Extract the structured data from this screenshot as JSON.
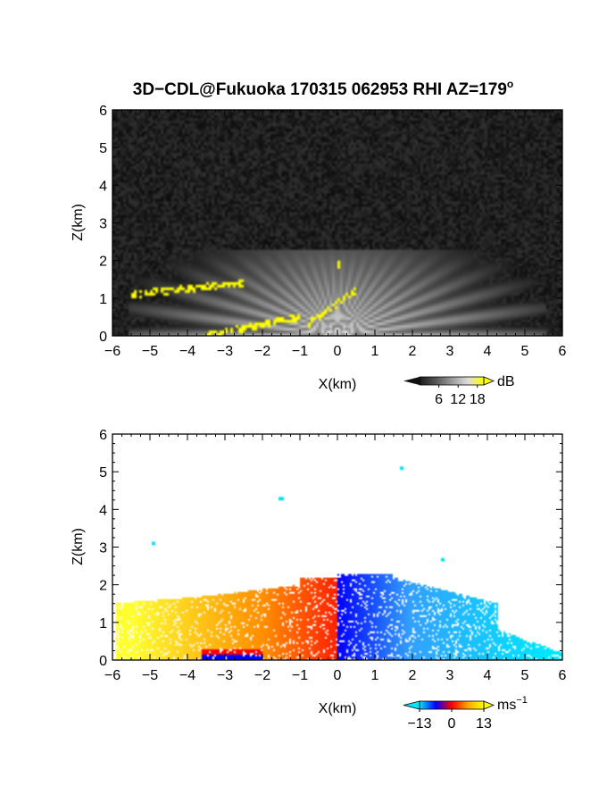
{
  "chart_data": [
    {
      "type": "heatmap",
      "title": "3D−CDL@Fukuoka 170315 062953 RHI AZ=179",
      "title_superscript": "o",
      "xlabel": "X(km)",
      "ylabel": "Z(km)",
      "xlim": [
        -6,
        6
      ],
      "ylim": [
        0,
        6
      ],
      "x_ticks": [
        "−6",
        "−5",
        "−4",
        "−3",
        "−2",
        "−1",
        "0",
        "1",
        "2",
        "3",
        "4",
        "5",
        "6"
      ],
      "y_ticks": [
        "0",
        "1",
        "2",
        "3",
        "4",
        "5",
        "6"
      ],
      "variable": "signal intensity",
      "colorbar": {
        "unit": "dB",
        "ticks": [
          "6",
          "12",
          "18"
        ],
        "range": [
          0,
          20
        ],
        "colors": [
          "#1a1a1a",
          "#555555",
          "#9a9a9a",
          "#dcdcdc",
          "#ffff00"
        ]
      },
      "features": {
        "background_noise_level": 0.13,
        "echo_top_km": 2.3,
        "strong_echo_segments_km": [
          {
            "x": [
              -5.5,
              -2.5
            ],
            "z": [
              1.1,
              1.4
            ]
          },
          {
            "x": [
              -3.5,
              -1.0
            ],
            "z": [
              0.0,
              0.5
            ]
          },
          {
            "x": [
              -0.8,
              0.5
            ],
            "z": [
              0.3,
              1.2
            ]
          },
          {
            "x": [
              0.0,
              0.1
            ],
            "z": [
              1.8,
              2.1
            ]
          }
        ]
      }
    },
    {
      "type": "heatmap",
      "title": "",
      "xlabel": "X(km)",
      "ylabel": "Z(km)",
      "xlim": [
        -6,
        6
      ],
      "ylim": [
        0,
        6
      ],
      "x_ticks": [
        "−6",
        "−5",
        "−4",
        "−3",
        "−2",
        "−1",
        "0",
        "1",
        "2",
        "3",
        "4",
        "5",
        "6"
      ],
      "y_ticks": [
        "0",
        "1",
        "2",
        "3",
        "4",
        "5",
        "6"
      ],
      "variable": "Doppler velocity",
      "colorbar": {
        "unit": "ms",
        "unit_superscript": "−1",
        "ticks": [
          "−13",
          "0",
          "13"
        ],
        "range": [
          -13,
          13
        ],
        "colors": [
          "#00e5ff",
          "#0000ff",
          "#ff0000",
          "#ffa500",
          "#ffff00"
        ]
      },
      "features": {
        "approaching_side": "x < 0 (red to yellow)",
        "receding_side": "x > 0 (blue to cyan)",
        "echo_top_km": 2.3,
        "isolated_points_km": [
          {
            "x": -4.9,
            "z": 3.1
          },
          {
            "x": -1.5,
            "z": 4.3
          },
          {
            "x": 1.7,
            "z": 5.1
          },
          {
            "x": 2.8,
            "z": 2.65
          }
        ]
      }
    }
  ]
}
